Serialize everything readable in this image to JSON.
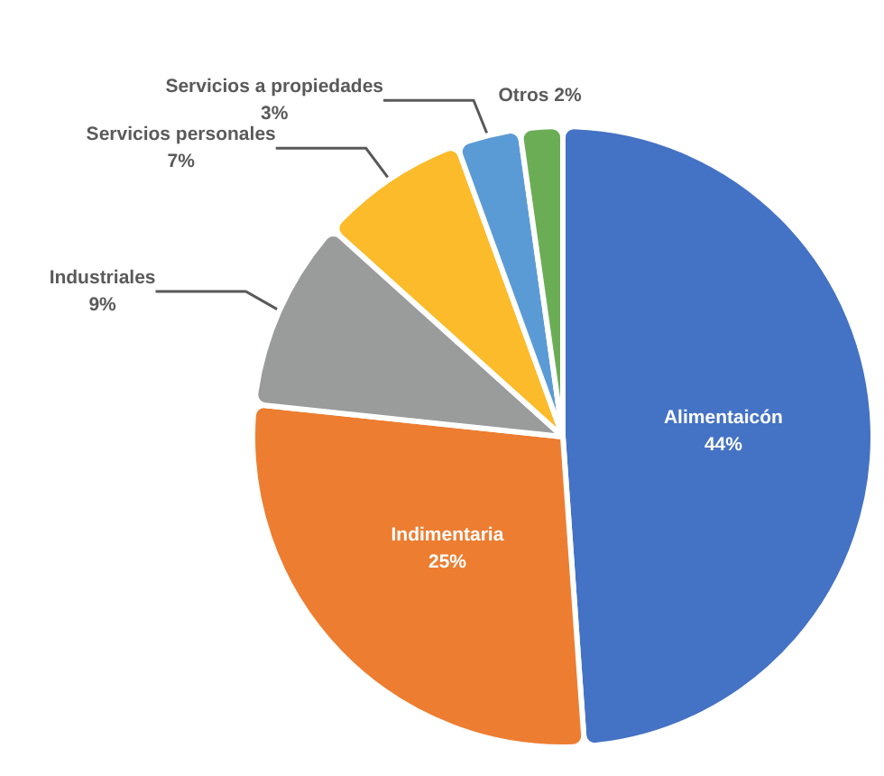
{
  "chart_data": {
    "type": "pie",
    "categories": [
      "Alimentaicón",
      "Indimentaria",
      "Industriales",
      "Servicios personales",
      "Servicios a propiedades",
      "Otros"
    ],
    "values": [
      44,
      25,
      9,
      7,
      3,
      2
    ],
    "value_labels": [
      "44%",
      "25%",
      "9%",
      "7%",
      "3%",
      "2%"
    ],
    "colors": [
      "#4472c4",
      "#ed7d31",
      "#9a9c9b",
      "#fbbb2a",
      "#5b9bd5",
      "#6aad55"
    ]
  }
}
